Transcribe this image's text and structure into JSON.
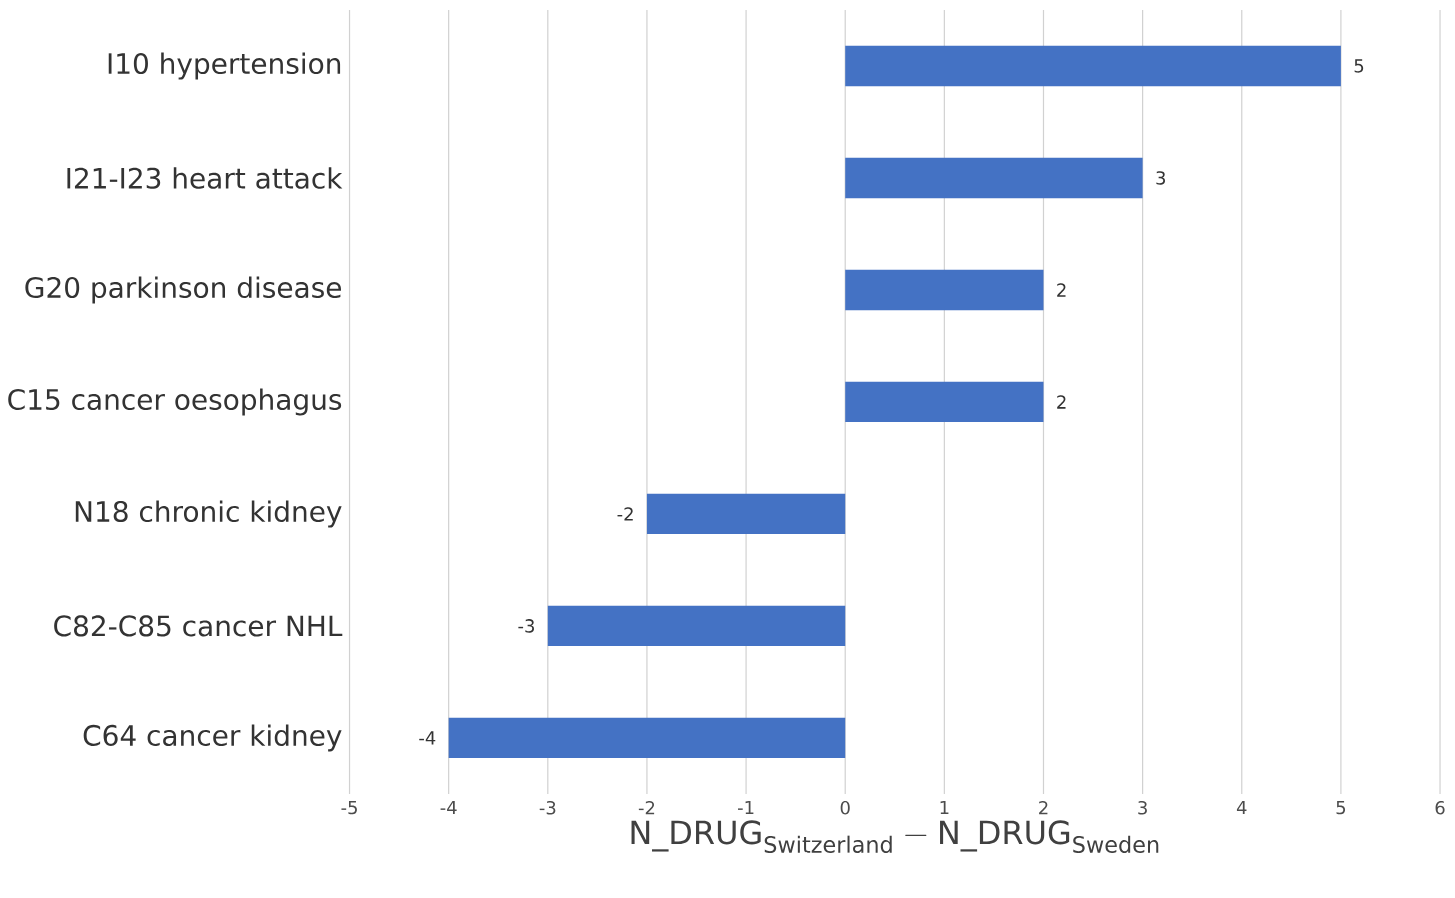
{
  "chart_data": {
    "type": "bar",
    "orientation": "horizontal",
    "categories": [
      "I10 hypertension",
      "I21-I23 heart attack",
      "G20 parkinson disease",
      "C15 cancer oesophagus",
      "N18 chronic kidney",
      "C82-C85 cancer NHL",
      "C64 cancer kidney"
    ],
    "values": [
      5,
      3,
      2,
      2,
      -2,
      -3,
      -4
    ],
    "color": "#4472c4",
    "xlim": [
      -5,
      6
    ],
    "xticks": [
      -5,
      -4,
      -3,
      -2,
      -1,
      0,
      1,
      2,
      3,
      4,
      5,
      6
    ],
    "xlabel": "\\mathrm{N\\_DRUG}_{\\mathrm{Switzerland}} - \\mathrm{N\\_DRUG}_{\\mathrm{Sweden}}",
    "grid": "x",
    "data_labels": true
  }
}
